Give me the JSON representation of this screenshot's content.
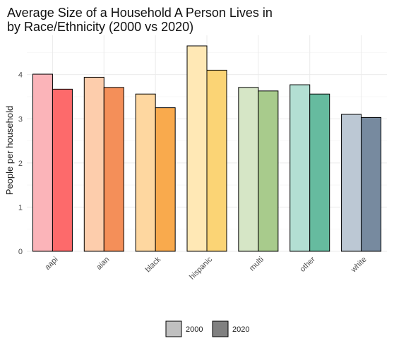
{
  "chart_data": {
    "type": "bar",
    "title": "Average Size of a Household A Person Lives in\nby Race/Ethnicity (2000 vs 2020)",
    "xlabel": "",
    "ylabel": "People per household",
    "categories": [
      "aapi",
      "aian",
      "black",
      "hispanic",
      "multi",
      "other",
      "white"
    ],
    "series": [
      {
        "name": "2000",
        "values": [
          4.01,
          3.94,
          3.56,
          4.65,
          3.71,
          3.77,
          3.1
        ]
      },
      {
        "name": "2020",
        "values": [
          3.67,
          3.71,
          3.25,
          4.1,
          3.63,
          3.56,
          3.03
        ]
      }
    ],
    "ylim": [
      0,
      4.65
    ],
    "yticks": [
      0,
      1,
      2,
      3,
      4
    ],
    "grid": true,
    "legend_position": "bottom",
    "colors": {
      "2000": [
        "#fbb4b9",
        "#fdcdac",
        "#fed7a0",
        "#ffe8b5",
        "#d6e6c6",
        "#b3dfd3",
        "#bcc8d4"
      ],
      "2020": [
        "#fd6a6b",
        "#f48f59",
        "#f9aa4d",
        "#fbd475",
        "#a8cb8c",
        "#66bb9f",
        "#778a9f"
      ],
      "legend": {
        "2000": "#c0c0c0",
        "2020": "#808080"
      }
    }
  }
}
